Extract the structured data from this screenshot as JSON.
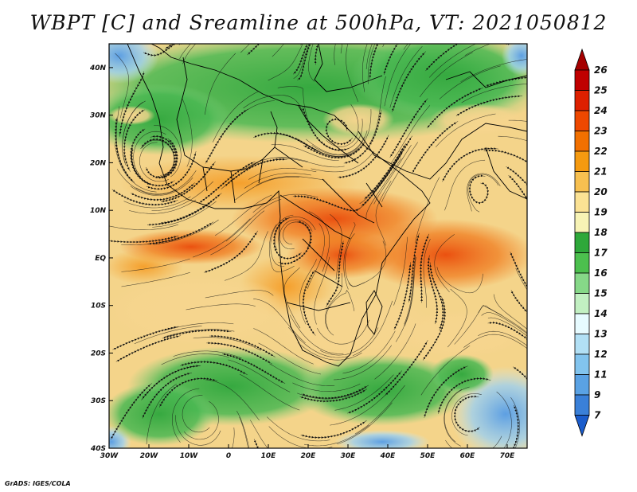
{
  "title": "WBPT [C] and Sreamline at 500hPa, VT: 2021050812",
  "credit": "GrADS: IGES/COLA",
  "map": {
    "lon_range": [
      -30,
      75
    ],
    "lat_range": [
      -40,
      45
    ],
    "lat_ticks": [
      {
        "value": 40,
        "label": "40N"
      },
      {
        "value": 30,
        "label": "30N"
      },
      {
        "value": 20,
        "label": "20N"
      },
      {
        "value": 10,
        "label": "10N"
      },
      {
        "value": 0,
        "label": "EQ"
      },
      {
        "value": -10,
        "label": "10S"
      },
      {
        "value": -20,
        "label": "20S"
      },
      {
        "value": -30,
        "label": "30S"
      },
      {
        "value": -40,
        "label": "40S"
      }
    ],
    "lon_ticks": [
      {
        "value": -30,
        "label": "30W"
      },
      {
        "value": -20,
        "label": "20W"
      },
      {
        "value": -10,
        "label": "10W"
      },
      {
        "value": 0,
        "label": "0"
      },
      {
        "value": 10,
        "label": "10E"
      },
      {
        "value": 20,
        "label": "20E"
      },
      {
        "value": 30,
        "label": "30E"
      },
      {
        "value": 40,
        "label": "40E"
      },
      {
        "value": 50,
        "label": "50E"
      },
      {
        "value": 60,
        "label": "60E"
      },
      {
        "value": 70,
        "label": "70E"
      }
    ]
  },
  "colorbar": {
    "labels": [
      "26",
      "25",
      "24",
      "23",
      "22",
      "21",
      "20",
      "19",
      "18",
      "17",
      "16",
      "15",
      "14",
      "13",
      "12",
      "11",
      "9",
      "7"
    ],
    "colors": [
      "#a50000",
      "#c00000",
      "#dd2000",
      "#ee4800",
      "#f27000",
      "#f59a10",
      "#f7c050",
      "#fbe294",
      "#f7f3b5",
      "#2ea83a",
      "#4cc04e",
      "#86d888",
      "#c2f0c2",
      "#e7fbff",
      "#b2e0f5",
      "#82c4ee",
      "#5aa2e4",
      "#3a80d8",
      "#1a5ccc"
    ]
  }
}
